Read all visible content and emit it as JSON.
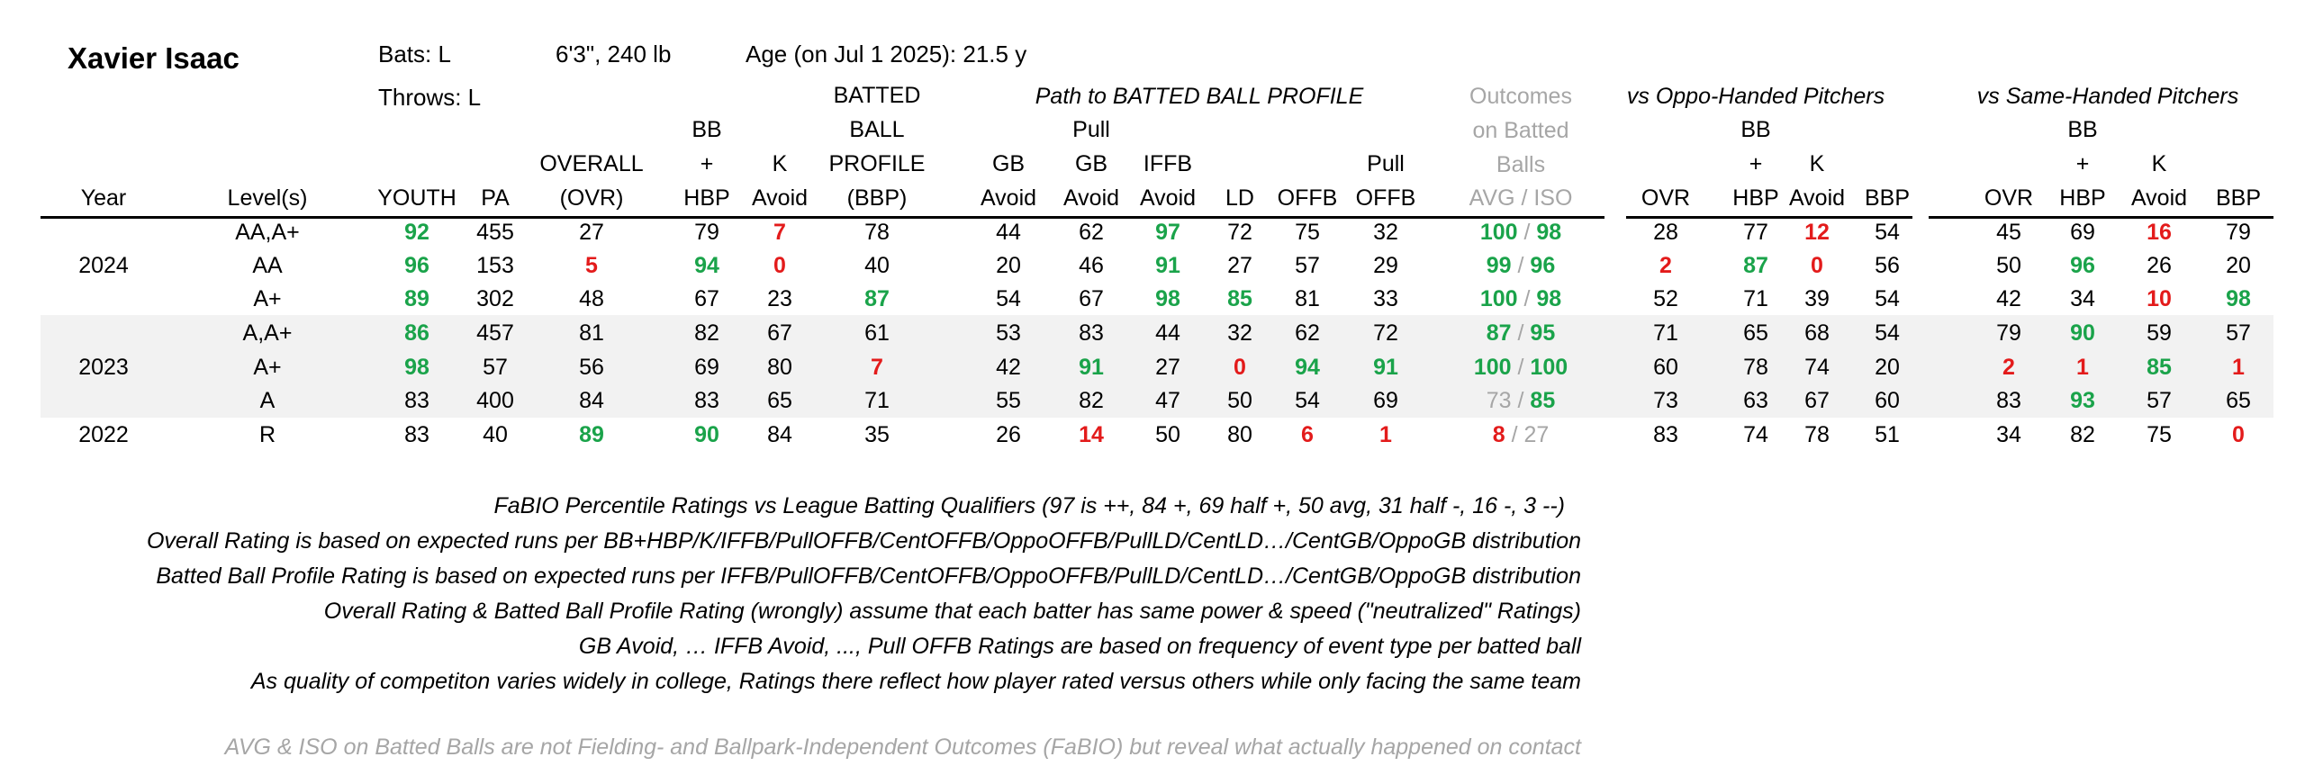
{
  "player": {
    "name": "Xavier Isaac",
    "bats": "Bats: L",
    "throws": "Throws: L",
    "size": "6'3\", 240 lb",
    "age": "Age (on Jul 1 2025): 21.5 y"
  },
  "group_headers": {
    "path": "Path to BATTED BALL PROFILE",
    "outcomes": [
      "Outcomes",
      "on Batted",
      "Balls"
    ],
    "oppo": "vs Oppo-Handed Pitchers",
    "same": "vs Same-Handed Pitchers"
  },
  "columns": [
    {
      "key": "year",
      "lines": [
        "Year"
      ]
    },
    {
      "key": "levels",
      "lines": [
        "Level(s)"
      ]
    },
    {
      "key": "youth",
      "lines": [
        "YOUTH"
      ]
    },
    {
      "key": "pa",
      "lines": [
        "PA"
      ]
    },
    {
      "key": "ovr",
      "lines": [
        "OVERALL",
        "(OVR)"
      ]
    },
    {
      "key": "bb",
      "lines": [
        "BB",
        "+",
        "HBP"
      ]
    },
    {
      "key": "k",
      "lines": [
        "K",
        "Avoid"
      ]
    },
    {
      "key": "bbp",
      "lines": [
        "BATTED",
        "BALL",
        "PROFILE",
        "(BBP)"
      ]
    },
    {
      "key": "gb",
      "lines": [
        "GB",
        "Avoid"
      ]
    },
    {
      "key": "pgb",
      "lines": [
        "Pull",
        "GB",
        "Avoid"
      ]
    },
    {
      "key": "iffb",
      "lines": [
        "IFFB",
        "Avoid"
      ]
    },
    {
      "key": "ld",
      "lines": [
        "LD"
      ]
    },
    {
      "key": "offb",
      "lines": [
        "OFFB"
      ]
    },
    {
      "key": "poffb",
      "lines": [
        "Pull",
        "OFFB"
      ]
    },
    {
      "key": "avgiso",
      "lines": [
        "AVG / ISO"
      ]
    },
    {
      "key": "o_ovr",
      "lines": [
        "OVR"
      ]
    },
    {
      "key": "o_bb",
      "lines": [
        "BB",
        "+",
        "HBP"
      ]
    },
    {
      "key": "o_k",
      "lines": [
        "K",
        "Avoid"
      ]
    },
    {
      "key": "o_bbp",
      "lines": [
        "BBP"
      ]
    },
    {
      "key": "s_ovr",
      "lines": [
        "OVR"
      ]
    },
    {
      "key": "s_bb",
      "lines": [
        "BB",
        "+",
        "HBP"
      ]
    },
    {
      "key": "s_k",
      "lines": [
        "K",
        "Avoid"
      ]
    },
    {
      "key": "s_bbp",
      "lines": [
        "BBP"
      ]
    }
  ],
  "rows": [
    {
      "year": "",
      "shade": false,
      "cells": [
        [
          "AA,A+",
          ""
        ],
        [
          "92",
          "g"
        ],
        [
          "455",
          ""
        ],
        [
          "27",
          ""
        ],
        [
          "79",
          ""
        ],
        [
          "7",
          "r"
        ],
        [
          "78",
          ""
        ],
        [
          "44",
          ""
        ],
        [
          "62",
          ""
        ],
        [
          "97",
          "g"
        ],
        [
          "72",
          ""
        ],
        [
          "75",
          ""
        ],
        [
          "32",
          ""
        ],
        [
          "100",
          "g",
          "98",
          "g"
        ],
        [
          "28",
          ""
        ],
        [
          "77",
          ""
        ],
        [
          "12",
          "r"
        ],
        [
          "54",
          ""
        ],
        [
          "45",
          ""
        ],
        [
          "69",
          ""
        ],
        [
          "16",
          "r"
        ],
        [
          "79",
          ""
        ]
      ]
    },
    {
      "year": "2024",
      "shade": false,
      "cells": [
        [
          "AA",
          ""
        ],
        [
          "96",
          "g"
        ],
        [
          "153",
          ""
        ],
        [
          "5",
          "r"
        ],
        [
          "94",
          "g"
        ],
        [
          "0",
          "r"
        ],
        [
          "40",
          ""
        ],
        [
          "20",
          ""
        ],
        [
          "46",
          ""
        ],
        [
          "91",
          "g"
        ],
        [
          "27",
          ""
        ],
        [
          "57",
          ""
        ],
        [
          "29",
          ""
        ],
        [
          "99",
          "g",
          "96",
          "g"
        ],
        [
          "2",
          "r"
        ],
        [
          "87",
          "g"
        ],
        [
          "0",
          "r"
        ],
        [
          "56",
          ""
        ],
        [
          "50",
          ""
        ],
        [
          "96",
          "g"
        ],
        [
          "26",
          ""
        ],
        [
          "20",
          ""
        ]
      ]
    },
    {
      "year": "",
      "shade": false,
      "cells": [
        [
          "A+",
          ""
        ],
        [
          "89",
          "g"
        ],
        [
          "302",
          ""
        ],
        [
          "48",
          ""
        ],
        [
          "67",
          ""
        ],
        [
          "23",
          ""
        ],
        [
          "87",
          "g"
        ],
        [
          "54",
          ""
        ],
        [
          "67",
          ""
        ],
        [
          "98",
          "g"
        ],
        [
          "85",
          "g"
        ],
        [
          "81",
          ""
        ],
        [
          "33",
          ""
        ],
        [
          "100",
          "g",
          "98",
          "g"
        ],
        [
          "52",
          ""
        ],
        [
          "71",
          ""
        ],
        [
          "39",
          ""
        ],
        [
          "54",
          ""
        ],
        [
          "42",
          ""
        ],
        [
          "34",
          ""
        ],
        [
          "10",
          "r"
        ],
        [
          "98",
          "g"
        ]
      ]
    },
    {
      "year": "",
      "shade": true,
      "cells": [
        [
          "A,A+",
          ""
        ],
        [
          "86",
          "g"
        ],
        [
          "457",
          ""
        ],
        [
          "81",
          ""
        ],
        [
          "82",
          ""
        ],
        [
          "67",
          ""
        ],
        [
          "61",
          ""
        ],
        [
          "53",
          ""
        ],
        [
          "83",
          ""
        ],
        [
          "44",
          ""
        ],
        [
          "32",
          ""
        ],
        [
          "62",
          ""
        ],
        [
          "72",
          ""
        ],
        [
          "87",
          "g",
          "95",
          "g"
        ],
        [
          "71",
          ""
        ],
        [
          "65",
          ""
        ],
        [
          "68",
          ""
        ],
        [
          "54",
          ""
        ],
        [
          "79",
          ""
        ],
        [
          "90",
          "g"
        ],
        [
          "59",
          ""
        ],
        [
          "57",
          ""
        ]
      ]
    },
    {
      "year": "2023",
      "shade": true,
      "cells": [
        [
          "A+",
          ""
        ],
        [
          "98",
          "g"
        ],
        [
          "57",
          ""
        ],
        [
          "56",
          ""
        ],
        [
          "69",
          ""
        ],
        [
          "80",
          ""
        ],
        [
          "7",
          "r"
        ],
        [
          "42",
          ""
        ],
        [
          "91",
          "g"
        ],
        [
          "27",
          ""
        ],
        [
          "0",
          "r"
        ],
        [
          "94",
          "g"
        ],
        [
          "91",
          "g"
        ],
        [
          "100",
          "g",
          "100",
          "g"
        ],
        [
          "60",
          ""
        ],
        [
          "78",
          ""
        ],
        [
          "74",
          ""
        ],
        [
          "20",
          ""
        ],
        [
          "2",
          "r"
        ],
        [
          "1",
          "r"
        ],
        [
          "85",
          "g"
        ],
        [
          "1",
          "r"
        ]
      ]
    },
    {
      "year": "",
      "shade": true,
      "cells": [
        [
          "A",
          ""
        ],
        [
          "83",
          ""
        ],
        [
          "400",
          ""
        ],
        [
          "84",
          ""
        ],
        [
          "83",
          ""
        ],
        [
          "65",
          ""
        ],
        [
          "71",
          ""
        ],
        [
          "55",
          ""
        ],
        [
          "82",
          ""
        ],
        [
          "47",
          ""
        ],
        [
          "50",
          ""
        ],
        [
          "54",
          ""
        ],
        [
          "69",
          ""
        ],
        [
          "73",
          "y",
          "85",
          "g"
        ],
        [
          "73",
          ""
        ],
        [
          "63",
          ""
        ],
        [
          "67",
          ""
        ],
        [
          "60",
          ""
        ],
        [
          "83",
          ""
        ],
        [
          "93",
          "g"
        ],
        [
          "57",
          ""
        ],
        [
          "65",
          ""
        ]
      ]
    },
    {
      "year": "2022",
      "shade": false,
      "cells": [
        [
          "R",
          ""
        ],
        [
          "83",
          ""
        ],
        [
          "40",
          ""
        ],
        [
          "89",
          "g"
        ],
        [
          "90",
          "g"
        ],
        [
          "84",
          ""
        ],
        [
          "35",
          ""
        ],
        [
          "26",
          ""
        ],
        [
          "14",
          "r"
        ],
        [
          "50",
          ""
        ],
        [
          "80",
          ""
        ],
        [
          "6",
          "r"
        ],
        [
          "1",
          "r"
        ],
        [
          "8",
          "r",
          "27",
          "y"
        ],
        [
          "83",
          ""
        ],
        [
          "74",
          ""
        ],
        [
          "78",
          ""
        ],
        [
          "51",
          ""
        ],
        [
          "34",
          ""
        ],
        [
          "82",
          ""
        ],
        [
          "75",
          ""
        ],
        [
          "0",
          "r"
        ]
      ]
    }
  ],
  "notes": [
    "FaBIO Percentile Ratings vs League Batting Qualifiers (97 is ++, 84 +, 69 half +, 50 avg, 31 half -, 16 -, 3 --)",
    "Overall Rating is based on expected runs per BB+HBP/K/IFFB/PullOFFB/CentOFFB/OppoOFFB/PullLD/CentLD…/CentGB/OppoGB distribution",
    "Batted Ball Profile Rating is based on expected runs per IFFB/PullOFFB/CentOFFB/OppoOFFB/PullLD/CentLD…/CentGB/OppoGB distribution",
    "Overall Rating & Batted Ball Profile Rating (wrongly) assume that each batter has same power & speed (\"neutralized\" Ratings)",
    "GB Avoid, … IFFB Avoid, ..., Pull OFFB Ratings are based on frequency of event type per batted ball",
    "As quality of competiton varies widely in college, Ratings there reflect how player rated versus others while only facing the same team"
  ],
  "footnote": "AVG & ISO on Batted Balls are not Fielding- and Ballpark-Independent Outcomes (FaBIO) but reveal what actually happened on contact",
  "colors": {
    "green": "#1aa34a",
    "red": "#e31b1b",
    "grey": "#a6a6a6",
    "band": "#f2f2f2"
  }
}
